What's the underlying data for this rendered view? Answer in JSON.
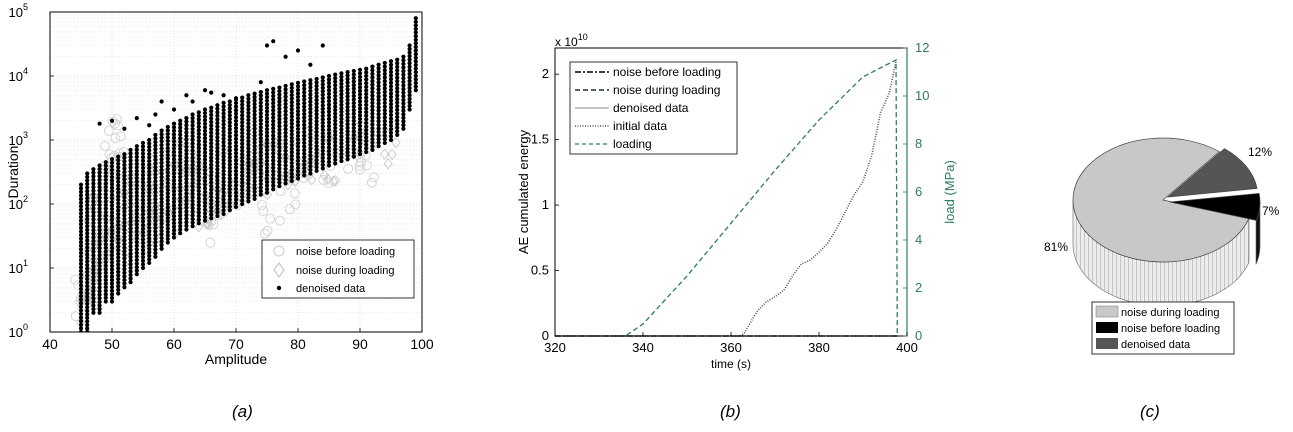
{
  "panel_labels": [
    "(a)",
    "(b)",
    "(c)"
  ],
  "chart_data": [
    {
      "type": "scatter",
      "xlabel": "Amplitude",
      "ylabel": "Duration",
      "xlim": [
        40,
        100
      ],
      "ylim": [
        1,
        100000
      ],
      "y_scale": "log",
      "grid": true,
      "legend_placement": "bottom-right",
      "x_ticks": [
        "40",
        "50",
        "60",
        "70",
        "80",
        "90",
        "100"
      ],
      "y_tick_exponents": [
        "0",
        "1",
        "2",
        "3",
        "4",
        "5"
      ],
      "y_tick_base": "10",
      "series": [
        {
          "name": "noise before loading",
          "marker": "circle",
          "color": "#d0d0d0",
          "points": [
            [
              45,
              3
            ],
            [
              46,
              8
            ],
            [
              47,
              20
            ],
            [
              48,
              50
            ],
            [
              48,
              150
            ],
            [
              49,
              400
            ],
            [
              50,
              800
            ],
            [
              51,
              700
            ],
            [
              52,
              300
            ],
            [
              53,
              120
            ],
            [
              55,
              80
            ],
            [
              57,
              200
            ],
            [
              60,
              500
            ],
            [
              62,
              400
            ],
            [
              64,
              150
            ],
            [
              66,
              60
            ],
            [
              68,
              250
            ],
            [
              70,
              120
            ],
            [
              72,
              300
            ],
            [
              74,
              800
            ],
            [
              75,
              60
            ],
            [
              78,
              100
            ],
            [
              80,
              200
            ],
            [
              82,
              400
            ],
            [
              85,
              500
            ],
            [
              88,
              900
            ],
            [
              90,
              800
            ],
            [
              92,
              600
            ]
          ]
        },
        {
          "name": "noise during loading",
          "marker": "diamond",
          "color": "#c8c8c8",
          "points": [
            [
              46,
              2
            ],
            [
              47,
              5
            ],
            [
              48,
              12
            ],
            [
              50,
              20
            ],
            [
              50,
              60
            ],
            [
              52,
              30
            ],
            [
              53,
              90
            ],
            [
              55,
              120
            ],
            [
              56,
              40
            ],
            [
              57,
              60
            ],
            [
              58,
              150
            ],
            [
              60,
              70
            ],
            [
              60,
              250
            ],
            [
              62,
              180
            ],
            [
              63,
              110
            ],
            [
              65,
              200
            ],
            [
              66,
              90
            ],
            [
              68,
              140
            ],
            [
              70,
              200
            ],
            [
              72,
              280
            ],
            [
              74,
              350
            ],
            [
              76,
              420
            ],
            [
              78,
              500
            ],
            [
              80,
              450
            ],
            [
              82,
              600
            ],
            [
              85,
              500
            ],
            [
              90,
              700
            ],
            [
              95,
              800
            ]
          ]
        },
        {
          "name": "denoised data",
          "marker": "dot",
          "color": "#000000",
          "columns": [
            {
              "x": 45,
              "min": 1,
              "max": 200
            },
            {
              "x": 46,
              "min": 1,
              "max": 300
            },
            {
              "x": 47,
              "min": 2,
              "max": 350
            },
            {
              "x": 48,
              "min": 2,
              "max": 400
            },
            {
              "x": 49,
              "min": 3,
              "max": 450
            },
            {
              "x": 50,
              "min": 3,
              "max": 500
            },
            {
              "x": 51,
              "min": 4,
              "max": 550
            },
            {
              "x": 52,
              "min": 5,
              "max": 600
            },
            {
              "x": 53,
              "min": 6,
              "max": 700
            },
            {
              "x": 54,
              "min": 8,
              "max": 800
            },
            {
              "x": 55,
              "min": 10,
              "max": 900
            },
            {
              "x": 56,
              "min": 12,
              "max": 1000
            },
            {
              "x": 57,
              "min": 15,
              "max": 1200
            },
            {
              "x": 58,
              "min": 20,
              "max": 1400
            },
            {
              "x": 59,
              "min": 25,
              "max": 1600
            },
            {
              "x": 60,
              "min": 30,
              "max": 1800
            },
            {
              "x": 61,
              "min": 35,
              "max": 2000
            },
            {
              "x": 62,
              "min": 40,
              "max": 2200
            },
            {
              "x": 63,
              "min": 45,
              "max": 2500
            },
            {
              "x": 64,
              "min": 50,
              "max": 2700
            },
            {
              "x": 65,
              "min": 55,
              "max": 3000
            },
            {
              "x": 66,
              "min": 60,
              "max": 3200
            },
            {
              "x": 67,
              "min": 65,
              "max": 3500
            },
            {
              "x": 68,
              "min": 70,
              "max": 3800
            },
            {
              "x": 69,
              "min": 80,
              "max": 4000
            },
            {
              "x": 70,
              "min": 90,
              "max": 4300
            },
            {
              "x": 71,
              "min": 100,
              "max": 4600
            },
            {
              "x": 72,
              "min": 110,
              "max": 5000
            },
            {
              "x": 73,
              "min": 120,
              "max": 5300
            },
            {
              "x": 74,
              "min": 140,
              "max": 5600
            },
            {
              "x": 75,
              "min": 150,
              "max": 6000
            },
            {
              "x": 76,
              "min": 170,
              "max": 6300
            },
            {
              "x": 77,
              "min": 190,
              "max": 6600
            },
            {
              "x": 78,
              "min": 210,
              "max": 7000
            },
            {
              "x": 79,
              "min": 230,
              "max": 7400
            },
            {
              "x": 80,
              "min": 250,
              "max": 7800
            },
            {
              "x": 81,
              "min": 280,
              "max": 8200
            },
            {
              "x": 82,
              "min": 300,
              "max": 8600
            },
            {
              "x": 83,
              "min": 330,
              "max": 9000
            },
            {
              "x": 84,
              "min": 360,
              "max": 9500
            },
            {
              "x": 85,
              "min": 400,
              "max": 10000
            },
            {
              "x": 86,
              "min": 430,
              "max": 10500
            },
            {
              "x": 87,
              "min": 470,
              "max": 11000
            },
            {
              "x": 88,
              "min": 500,
              "max": 11500
            },
            {
              "x": 89,
              "min": 550,
              "max": 12000
            },
            {
              "x": 90,
              "min": 600,
              "max": 12500
            },
            {
              "x": 91,
              "min": 650,
              "max": 13000
            },
            {
              "x": 92,
              "min": 700,
              "max": 14000
            },
            {
              "x": 93,
              "min": 800,
              "max": 15000
            },
            {
              "x": 94,
              "min": 900,
              "max": 16000
            },
            {
              "x": 95,
              "min": 1000,
              "max": 17000
            },
            {
              "x": 96,
              "min": 1200,
              "max": 18000
            },
            {
              "x": 97,
              "min": 1500,
              "max": 20000
            },
            {
              "x": 98,
              "min": 3000,
              "max": 30000
            },
            {
              "x": 99,
              "min": 6000,
              "max": 80000
            }
          ],
          "extra_points": [
            [
              48,
              1800
            ],
            [
              50,
              2000
            ],
            [
              52,
              1500
            ],
            [
              54,
              2200
            ],
            [
              56,
              1700
            ],
            [
              57,
              2500
            ],
            [
              58,
              4000
            ],
            [
              60,
              3000
            ],
            [
              62,
              5000
            ],
            [
              63,
              4000
            ],
            [
              65,
              6000
            ],
            [
              66,
              5500
            ],
            [
              68,
              5000
            ],
            [
              70,
              4500
            ],
            [
              74,
              8000
            ],
            [
              75,
              30000
            ],
            [
              76,
              35000
            ],
            [
              78,
              20000
            ],
            [
              80,
              25000
            ],
            [
              82,
              15000
            ],
            [
              84,
              30000
            ]
          ]
        }
      ]
    },
    {
      "type": "line",
      "xlabel": "time (s)",
      "ylabel": "AE cumulated energy",
      "ylabel_right": "load (MPa)",
      "xlim": [
        320,
        400
      ],
      "ylim": [
        0,
        22000000000
      ],
      "ylim_right": [
        0,
        12
      ],
      "y_multiplier": "x 10",
      "y_multiplier_exponent": "10",
      "x_ticks": [
        "320",
        "340",
        "360",
        "380",
        "400"
      ],
      "y_ticks": [
        "0",
        "0.5",
        "1",
        "1.5",
        "2"
      ],
      "y_ticks_right": [
        "0",
        "2",
        "4",
        "6",
        "8",
        "10",
        "12"
      ],
      "legend_placement": "top-left",
      "right_axis_color": "#2e7d5b",
      "series": [
        {
          "name": "noise before loading",
          "style": "dash-dot",
          "color": "#000000",
          "axis": "left",
          "points": [
            [
              320,
              0
            ],
            [
              350,
              0
            ],
            [
              380,
              0
            ],
            [
              395,
              0
            ],
            [
              398,
              0
            ]
          ]
        },
        {
          "name": "noise during loading",
          "style": "dash",
          "color": "#1a3326",
          "axis": "left",
          "points": [
            [
              320,
              0
            ],
            [
              360,
              0
            ],
            [
              390,
              0
            ],
            [
              398,
              0
            ]
          ]
        },
        {
          "name": "denoised data",
          "style": "solid",
          "color": "#b0b0b0",
          "axis": "left",
          "points": [
            [
              320,
              0
            ],
            [
              340,
              0
            ],
            [
              398,
              0
            ]
          ]
        },
        {
          "name": "initial data",
          "style": "dotted",
          "color": "#555555",
          "axis": "left",
          "points": [
            [
              320,
              0
            ],
            [
              352,
              0
            ],
            [
              362,
              0
            ],
            [
              363,
              200000000
            ],
            [
              364,
              800000000
            ],
            [
              366,
              1900000000
            ],
            [
              368,
              2600000000
            ],
            [
              370,
              3000000000
            ],
            [
              372,
              3500000000
            ],
            [
              374,
              4600000000
            ],
            [
              376,
              5500000000
            ],
            [
              378,
              5800000000
            ],
            [
              380,
              6400000000
            ],
            [
              382,
              7100000000
            ],
            [
              384,
              8200000000
            ],
            [
              386,
              9500000000
            ],
            [
              388,
              10800000000
            ],
            [
              390,
              11800000000
            ],
            [
              392,
              13800000000
            ],
            [
              394,
              17100000000
            ],
            [
              395,
              17800000000
            ],
            [
              396,
              18600000000
            ],
            [
              397,
              20200000000
            ],
            [
              397.5,
              21000000000
            ]
          ]
        },
        {
          "name": "loading",
          "style": "dash",
          "color": "#2e7d5b",
          "axis": "right",
          "points": [
            [
              320,
              0
            ],
            [
              336,
              0
            ],
            [
              340,
              0.5
            ],
            [
              350,
              2.5
            ],
            [
              360,
              4.7
            ],
            [
              370,
              6.9
            ],
            [
              380,
              9.0
            ],
            [
              390,
              10.8
            ],
            [
              397.5,
              11.5
            ],
            [
              397.8,
              0
            ]
          ]
        }
      ]
    },
    {
      "type": "pie",
      "style": "3d",
      "legend_placement": "bottom",
      "slices": [
        {
          "label": "noise during loading",
          "value": 81,
          "text": "81%",
          "color": "#c8c8c8"
        },
        {
          "label": "noise before loading",
          "value": 7,
          "text": "7%",
          "color": "#000000"
        },
        {
          "label": "denoised data",
          "value": 12,
          "text": "12%",
          "color": "#555555"
        }
      ]
    }
  ]
}
